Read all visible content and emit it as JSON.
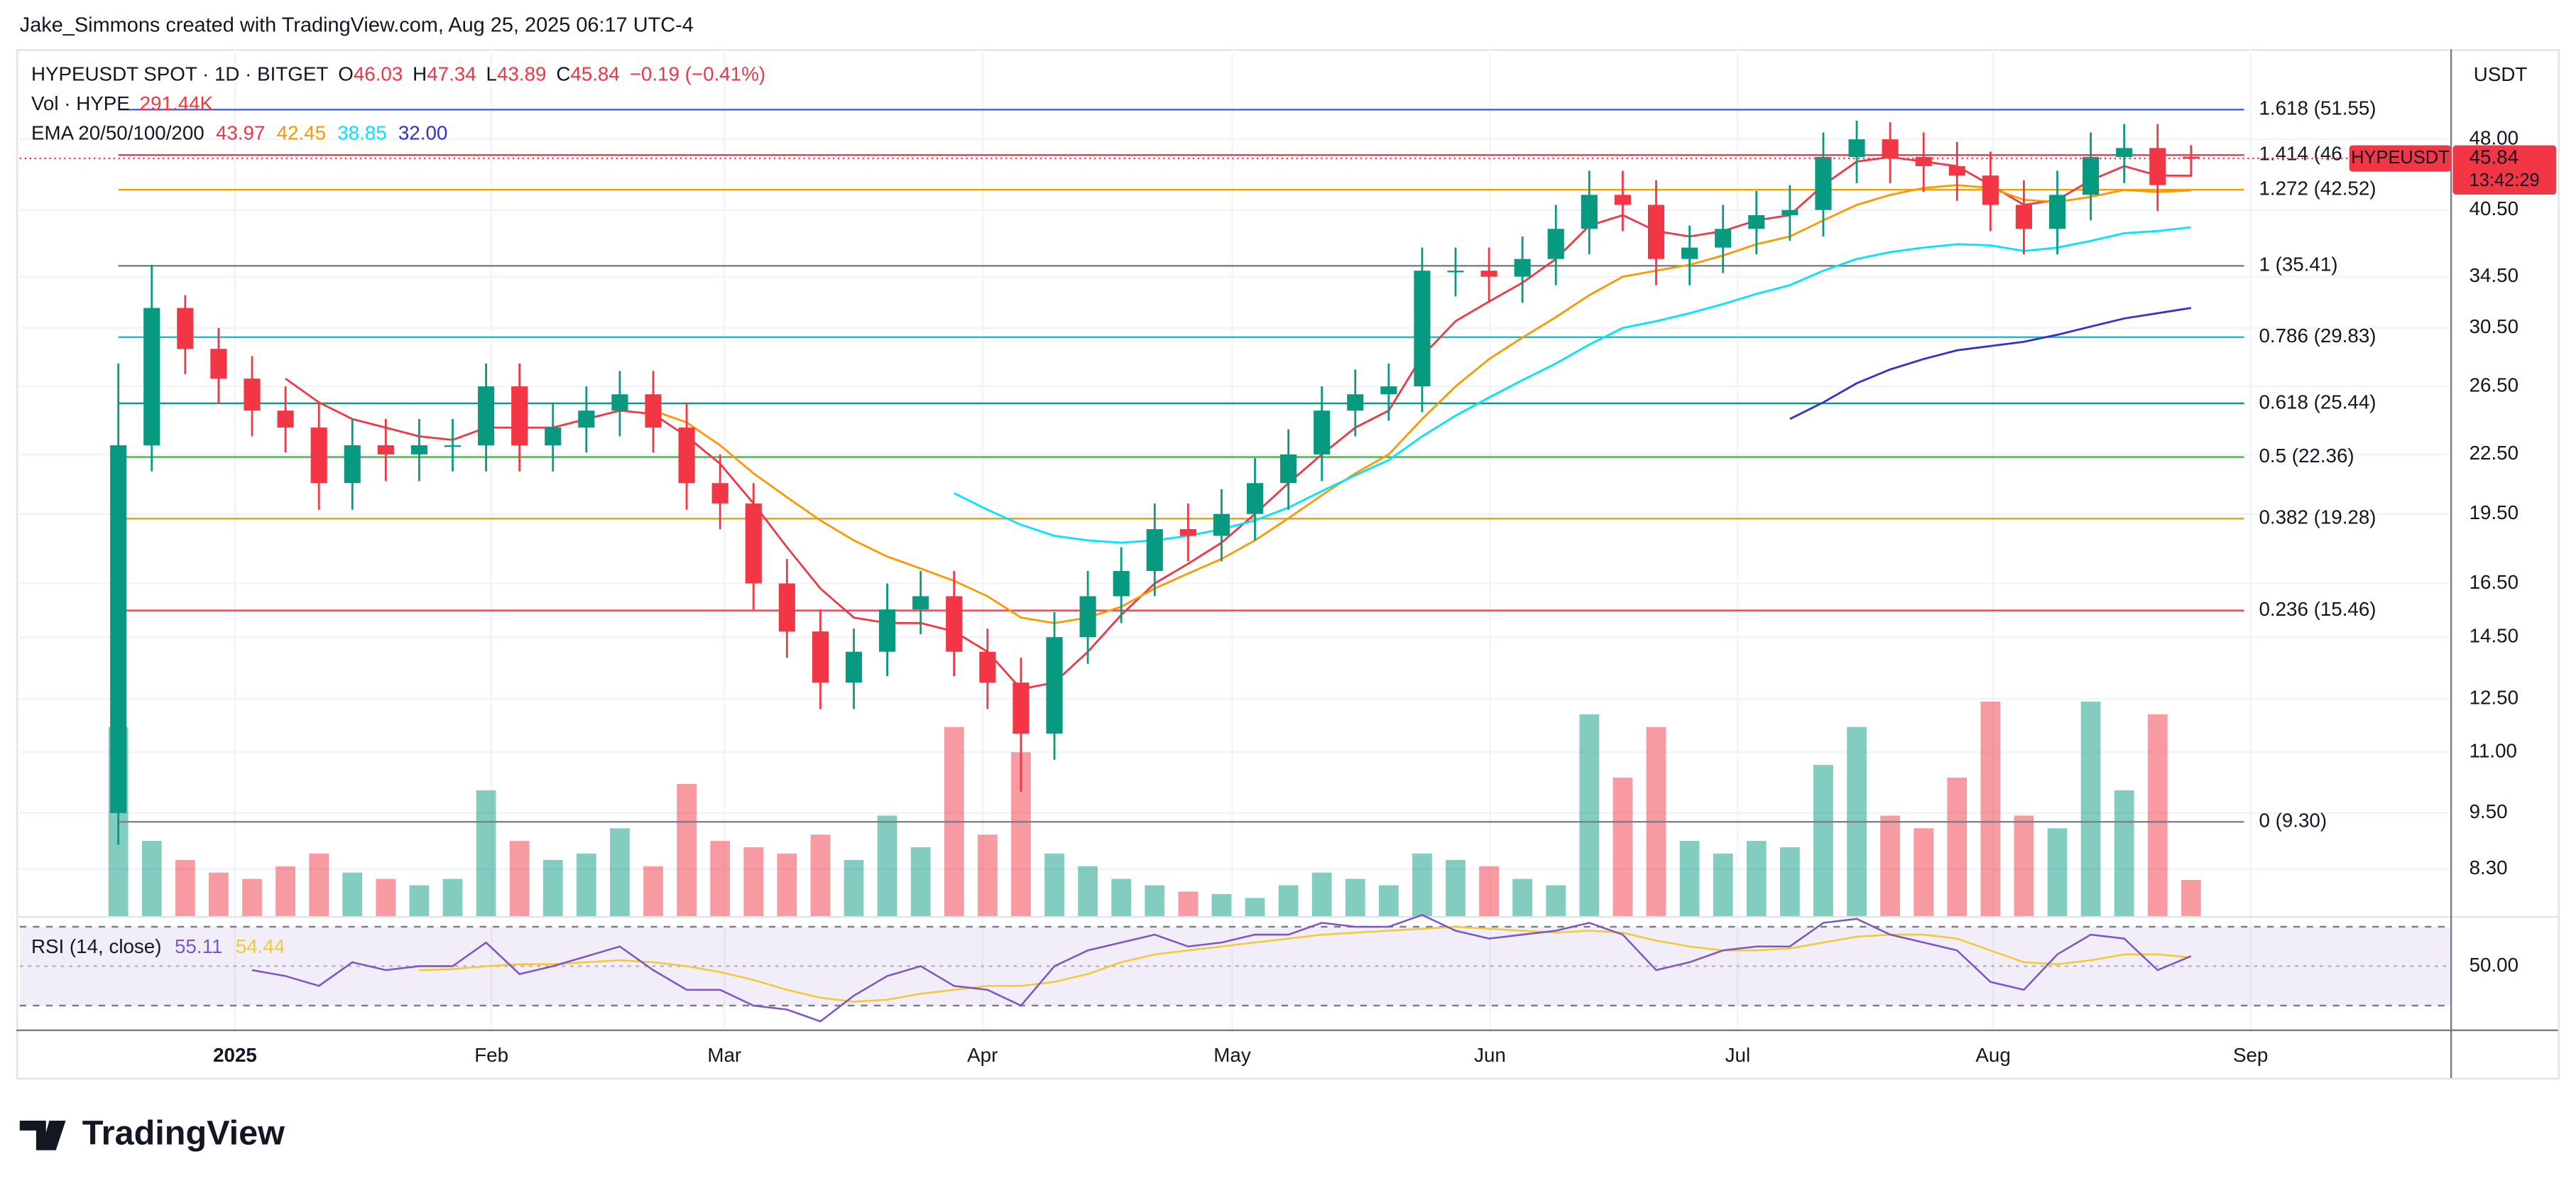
{
  "header": {
    "credit": "Jake_Simmons created with TradingView.com, Aug 25, 2025 06:17 UTC-4",
    "currency": "USDT",
    "logo": "TradingView"
  },
  "chart_data": {
    "type": "candlestick",
    "symbol": "HYPEUSDT SPOT · 1D · BITGET",
    "ohlc_prefixes": [
      "O",
      "H",
      "L",
      "C"
    ],
    "change": "−0.19 (−0.41%)",
    "volume_title": "Vol · HYPE",
    "volume_value": "291.44K",
    "ema_title": "EMA 20/50/100/200",
    "ema_values": [
      "43.97",
      "42.45",
      "38.85",
      "32.00"
    ],
    "price_tag": {
      "symbol": "HYPEUSDT",
      "countdown": "13:42:29"
    },
    "up_color": "#089981",
    "down_color": "#f23645",
    "open": [
      9.5,
      23,
      32,
      29,
      27,
      25,
      24,
      21,
      23,
      22.5,
      23,
      23,
      26.5,
      23,
      24,
      25,
      26,
      24,
      21,
      20,
      16.5,
      14.7,
      13,
      14,
      15.5,
      16,
      14,
      13,
      11.5,
      14.5,
      16,
      17,
      18.8,
      18.5,
      19.5,
      21,
      22.5,
      25,
      26,
      26.5,
      35,
      35,
      34.5,
      36,
      38.7,
      42,
      41,
      36,
      37,
      38.7,
      40,
      40.5,
      46,
      48,
      46,
      45,
      44,
      41,
      38.7,
      42,
      46,
      47,
      46.03
    ],
    "high": [
      28,
      35.5,
      33,
      30.5,
      28.5,
      26.5,
      25.5,
      24.5,
      24.5,
      24.5,
      24.5,
      28,
      28,
      25.5,
      26.5,
      27.5,
      27.5,
      25.5,
      22.5,
      21,
      17.5,
      15.5,
      14.8,
      16.5,
      17,
      17,
      14.8,
      13.8,
      15.4,
      17,
      18,
      20,
      20,
      20.7,
      22.3,
      23.9,
      26.5,
      27.6,
      28,
      37,
      37,
      37,
      38,
      41,
      44.5,
      44.5,
      43.5,
      39,
      41,
      42.4,
      43,
      48.8,
      50.2,
      50,
      48.8,
      47.7,
      46.6,
      43.5,
      44.5,
      48.8,
      49.8,
      49.8,
      47.34
    ],
    "low": [
      8.8,
      21.6,
      27.3,
      25.4,
      23.5,
      22.6,
      19.7,
      19.7,
      21.1,
      21.1,
      21.6,
      21.6,
      21.6,
      21.6,
      22.6,
      23.5,
      22.6,
      19.7,
      18.8,
      15.5,
      13.8,
      12.2,
      12.2,
      13.2,
      14.6,
      13.2,
      12.2,
      10,
      10.8,
      13.6,
      15,
      16,
      17.4,
      17.4,
      18.3,
      19.7,
      21.1,
      23.5,
      24.4,
      24.9,
      32.9,
      32.4,
      32.4,
      33.8,
      36.4,
      38.5,
      33.8,
      33.8,
      34.8,
      36.4,
      37.6,
      38,
      43.2,
      43.2,
      42.3,
      41.4,
      38.5,
      36.4,
      36.4,
      39.5,
      43.2,
      40.4,
      43.89
    ],
    "close": [
      23,
      32,
      29,
      27,
      25,
      24,
      21,
      23,
      22.5,
      23,
      23,
      26.5,
      23,
      24,
      25,
      26,
      24,
      21,
      20,
      16.5,
      14.7,
      13,
      14,
      15.5,
      16,
      14,
      13,
      11.5,
      14.5,
      16,
      17,
      18.8,
      18.5,
      19.5,
      21,
      22.5,
      25,
      26,
      26.5,
      35,
      35,
      34.5,
      36,
      38.7,
      42,
      41,
      36,
      37,
      38.7,
      40,
      40.5,
      46,
      48,
      46,
      45,
      44,
      41,
      38.7,
      42,
      46,
      47,
      43,
      45.84
    ],
    "volume": [
      1500,
      600,
      450,
      350,
      300,
      400,
      500,
      350,
      300,
      250,
      300,
      1000,
      600,
      450,
      500,
      700,
      400,
      1050,
      600,
      550,
      500,
      650,
      450,
      800,
      550,
      1500,
      650,
      1300,
      500,
      400,
      300,
      250,
      200,
      180,
      150,
      250,
      350,
      300,
      250,
      500,
      450,
      400,
      300,
      250,
      1600,
      1100,
      1500,
      600,
      500,
      600,
      550,
      1200,
      1500,
      800,
      700,
      1100,
      1700,
      800,
      700,
      1700,
      1000,
      1600,
      291.44
    ],
    "series": [
      {
        "color": "#f23645",
        "values": [
          null,
          null,
          null,
          null,
          null,
          27,
          25.5,
          24.5,
          24,
          23.5,
          23.3,
          24,
          24,
          24,
          24.5,
          25,
          24.8,
          23.5,
          22,
          20,
          18,
          16.3,
          15.2,
          15,
          15,
          14.7,
          14,
          12.8,
          13,
          14,
          15.3,
          16.5,
          17.3,
          18.2,
          19.5,
          21,
          22.5,
          24,
          25,
          28.5,
          31,
          32.5,
          34,
          36,
          39,
          40,
          38.5,
          38,
          38.5,
          39.5,
          40,
          43,
          45.5,
          46,
          45.5,
          45,
          43,
          41,
          41.5,
          43.5,
          45,
          44,
          43.97
        ]
      },
      {
        "color": "#ff9800",
        "values": [
          null,
          null,
          null,
          null,
          null,
          null,
          null,
          null,
          null,
          null,
          null,
          null,
          null,
          null,
          null,
          null,
          25,
          24.3,
          23,
          21.5,
          20.3,
          19.2,
          18.3,
          17.6,
          17.1,
          16.6,
          16,
          15.2,
          15,
          15.2,
          15.6,
          16.3,
          16.9,
          17.5,
          18.3,
          19.3,
          20.4,
          21.5,
          22.5,
          24.5,
          26.5,
          28.3,
          29.8,
          31.3,
          33,
          34.5,
          35,
          35.5,
          36.3,
          37.3,
          38,
          39.5,
          41,
          42,
          42.7,
          43,
          42.7,
          41.5,
          41.3,
          41.8,
          42.5,
          42.3,
          42.45
        ]
      },
      {
        "color": "#00e5ff",
        "values": [
          null,
          null,
          null,
          null,
          null,
          null,
          null,
          null,
          null,
          null,
          null,
          null,
          null,
          null,
          null,
          null,
          null,
          null,
          null,
          null,
          null,
          null,
          null,
          null,
          null,
          20.5,
          19.7,
          19,
          18.5,
          18.3,
          18.2,
          18.3,
          18.5,
          18.8,
          19.2,
          19.8,
          20.6,
          21.4,
          22.2,
          23.5,
          24.7,
          25.8,
          26.9,
          28,
          29.3,
          30.5,
          31,
          31.6,
          32.3,
          33.1,
          33.8,
          35,
          36,
          36.6,
          37,
          37.3,
          37.2,
          36.7,
          37,
          37.6,
          38.3,
          38.5,
          38.85
        ]
      },
      {
        "color": "#3030d8",
        "values": [
          null,
          null,
          null,
          null,
          null,
          null,
          null,
          null,
          null,
          null,
          null,
          null,
          null,
          null,
          null,
          null,
          null,
          null,
          null,
          null,
          null,
          null,
          null,
          null,
          null,
          null,
          null,
          null,
          null,
          null,
          null,
          null,
          null,
          null,
          null,
          null,
          null,
          null,
          null,
          null,
          null,
          null,
          null,
          null,
          null,
          null,
          null,
          null,
          null,
          null,
          24.5,
          25.5,
          26.7,
          27.6,
          28.3,
          28.9,
          29.2,
          29.5,
          30,
          30.6,
          31.2,
          31.6,
          32
        ]
      }
    ],
    "fib_levels": [
      {
        "label": "1.618 (51.55)",
        "value": 51.55,
        "color": "#2f5bea"
      },
      {
        "label": "1.414 (46",
        "value": 46.22,
        "color": "#f23645"
      },
      {
        "label": "1.272 (42.52)",
        "value": 42.52,
        "color": "#f5a000"
      },
      {
        "label": "1 (35.41)",
        "value": 35.41,
        "color": "#787b86"
      },
      {
        "label": "0.786 (29.83)",
        "value": 29.83,
        "color": "#00bcd4"
      },
      {
        "label": "0.618 (25.44)",
        "value": 25.44,
        "color": "#089981"
      },
      {
        "label": "0.5 (22.36)",
        "value": 22.36,
        "color": "#4caf50"
      },
      {
        "label": "0.382 (19.28)",
        "value": 19.28,
        "color": "#e6a100"
      },
      {
        "label": "0.236 (15.46)",
        "value": 15.46,
        "color": "#f23645"
      },
      {
        "label": "0 (9.30)",
        "value": 9.3,
        "color": "#787b86"
      }
    ],
    "xlim": [
      -2.95,
      69.78
    ],
    "xticks": [
      {
        "value": 3.49,
        "label": "2025"
      },
      {
        "value": 11.16,
        "label": "Feb"
      },
      {
        "value": 18.13,
        "label": "Mar"
      },
      {
        "value": 25.85,
        "label": "Apr"
      },
      {
        "value": 33.32,
        "label": "May"
      },
      {
        "value": 41.03,
        "label": "Jun"
      },
      {
        "value": 48.44,
        "label": "Jul"
      },
      {
        "value": 56.08,
        "label": "Aug"
      },
      {
        "value": 63.78,
        "label": "Sep"
      }
    ],
    "ylim": [
      7.4,
      59.6
    ],
    "log_scale": true,
    "yticks": [
      {
        "value": 8.3,
        "label": "8.30"
      },
      {
        "value": 9.5,
        "label": "9.50"
      },
      {
        "value": 11,
        "label": "11.00"
      },
      {
        "value": 12.5,
        "label": "12.50"
      },
      {
        "value": 14.5,
        "label": "14.50"
      },
      {
        "value": 16.5,
        "label": "16.50"
      },
      {
        "value": 19.5,
        "label": "19.50"
      },
      {
        "value": 22.5,
        "label": "22.50"
      },
      {
        "value": 26.5,
        "label": "26.50"
      },
      {
        "value": 30.5,
        "label": "30.50"
      },
      {
        "value": 34.5,
        "label": "34.50"
      },
      {
        "value": 40.5,
        "label": "40.50"
      },
      {
        "value": 48,
        "label": "48.00"
      }
    ],
    "grid": true,
    "rsi": {
      "title": "RSI (14, close)",
      "color": "#7e57c2",
      "ma_color": "#f5c835",
      "ylim": [
        18.3,
        75
      ],
      "bands": [
        30,
        70
      ],
      "yticks": [
        {
          "value": 50,
          "label": "50.00"
        }
      ],
      "values": [
        null,
        null,
        null,
        null,
        48,
        45,
        40,
        52,
        48,
        50,
        50,
        62,
        46,
        50,
        55,
        60,
        48,
        38,
        38,
        30,
        28,
        22,
        35,
        45,
        50,
        40,
        38,
        30,
        50,
        58,
        62,
        66,
        60,
        62,
        66,
        66,
        72,
        70,
        70,
        76,
        68,
        64,
        66,
        68,
        72,
        66,
        48,
        52,
        58,
        60,
        60,
        72,
        74,
        66,
        62,
        58,
        42,
        38,
        56,
        66,
        64,
        48,
        55.11
      ],
      "ma": [
        null,
        null,
        null,
        null,
        null,
        null,
        null,
        null,
        null,
        48,
        48.5,
        50,
        51,
        51,
        52,
        53,
        52,
        50,
        47,
        43,
        38,
        34,
        32,
        33,
        36,
        38,
        40,
        40,
        42,
        46,
        52,
        56,
        58,
        60,
        62,
        64,
        66,
        67,
        68,
        69,
        70,
        69,
        68,
        67,
        68,
        67,
        63,
        60,
        58,
        58,
        59,
        62,
        65,
        66,
        66,
        64,
        58,
        52,
        51,
        53,
        56,
        56,
        54.44
      ]
    }
  }
}
